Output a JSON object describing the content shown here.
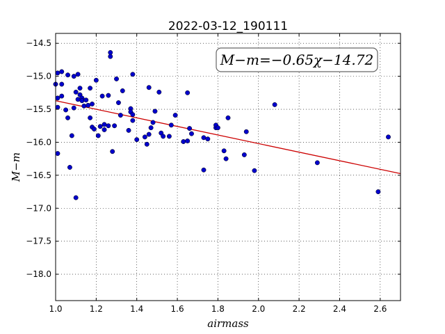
{
  "chart_data": {
    "type": "scatter",
    "title": "2022-03-12_190111",
    "xlabel": "airmass",
    "ylabel": "M−m",
    "xlim": [
      1.0,
      2.7
    ],
    "ylim": [
      -18.4,
      -14.35
    ],
    "y_inverted": true,
    "grid": true,
    "xticks": [
      "1.0",
      "1.2",
      "1.4",
      "1.6",
      "1.8",
      "2.0",
      "2.2",
      "2.4",
      "2.6"
    ],
    "xtick_values": [
      1.0,
      1.2,
      1.4,
      1.6,
      1.8,
      2.0,
      2.2,
      2.4,
      2.6
    ],
    "yticks": [
      "−14.5",
      "−15.0",
      "−15.5",
      "−16.0",
      "−16.5",
      "−17.0",
      "−17.5",
      "−18.0"
    ],
    "ytick_values": [
      -14.5,
      -15.0,
      -15.5,
      -16.0,
      -16.5,
      -17.0,
      -17.5,
      -18.0
    ],
    "annotation": "M−m=−0.65χ−14.72",
    "fit": {
      "slope": -0.65,
      "intercept": -14.72,
      "color": "#cc0000"
    },
    "marker_color": "#0000cc",
    "points": [
      [
        1.0,
        -15.12
      ],
      [
        1.01,
        -15.47
      ],
      [
        1.01,
        -15.33
      ],
      [
        1.01,
        -14.95
      ],
      [
        1.01,
        -16.17
      ],
      [
        1.03,
        -14.93
      ],
      [
        1.03,
        -15.12
      ],
      [
        1.03,
        -15.3
      ],
      [
        1.05,
        -15.51
      ],
      [
        1.06,
        -15.63
      ],
      [
        1.06,
        -14.98
      ],
      [
        1.07,
        -16.38
      ],
      [
        1.08,
        -15.9
      ],
      [
        1.09,
        -15.48
      ],
      [
        1.09,
        -15.0
      ],
      [
        1.1,
        -15.24
      ],
      [
        1.1,
        -16.84
      ],
      [
        1.11,
        -15.35
      ],
      [
        1.11,
        -14.97
      ],
      [
        1.12,
        -15.18
      ],
      [
        1.12,
        -15.28
      ],
      [
        1.13,
        -15.33
      ],
      [
        1.13,
        -15.37
      ],
      [
        1.14,
        -15.45
      ],
      [
        1.15,
        -15.36
      ],
      [
        1.16,
        -15.44
      ],
      [
        1.17,
        -15.63
      ],
      [
        1.17,
        -15.18
      ],
      [
        1.18,
        -15.42
      ],
      [
        1.18,
        -15.77
      ],
      [
        1.19,
        -15.8
      ],
      [
        1.2,
        -15.06
      ],
      [
        1.21,
        -15.9
      ],
      [
        1.22,
        -15.76
      ],
      [
        1.23,
        -15.3
      ],
      [
        1.24,
        -15.73
      ],
      [
        1.24,
        -15.81
      ],
      [
        1.26,
        -15.29
      ],
      [
        1.26,
        -15.75
      ],
      [
        1.27,
        -14.64
      ],
      [
        1.27,
        -14.7
      ],
      [
        1.28,
        -16.14
      ],
      [
        1.29,
        -15.75
      ],
      [
        1.3,
        -15.04
      ],
      [
        1.31,
        -15.4
      ],
      [
        1.32,
        -15.59
      ],
      [
        1.33,
        -15.22
      ],
      [
        1.36,
        -15.82
      ],
      [
        1.37,
        -15.49
      ],
      [
        1.37,
        -15.54
      ],
      [
        1.38,
        -14.97
      ],
      [
        1.38,
        -15.58
      ],
      [
        1.38,
        -15.67
      ],
      [
        1.4,
        -15.96
      ],
      [
        1.44,
        -15.92
      ],
      [
        1.45,
        -16.03
      ],
      [
        1.46,
        -15.88
      ],
      [
        1.46,
        -15.17
      ],
      [
        1.47,
        -15.78
      ],
      [
        1.48,
        -15.7
      ],
      [
        1.49,
        -15.53
      ],
      [
        1.51,
        -15.24
      ],
      [
        1.52,
        -15.86
      ],
      [
        1.53,
        -15.91
      ],
      [
        1.56,
        -15.91
      ],
      [
        1.57,
        -15.74
      ],
      [
        1.59,
        -15.59
      ],
      [
        1.63,
        -15.99
      ],
      [
        1.65,
        -15.98
      ],
      [
        1.65,
        -15.25
      ],
      [
        1.66,
        -15.79
      ],
      [
        1.67,
        -15.87
      ],
      [
        1.73,
        -15.93
      ],
      [
        1.73,
        -16.42
      ],
      [
        1.75,
        -15.95
      ],
      [
        1.79,
        -15.78
      ],
      [
        1.79,
        -15.74
      ],
      [
        1.8,
        -15.78
      ],
      [
        1.83,
        -16.13
      ],
      [
        1.84,
        -16.25
      ],
      [
        1.85,
        -15.63
      ],
      [
        1.93,
        -16.19
      ],
      [
        1.94,
        -15.84
      ],
      [
        1.98,
        -16.43
      ],
      [
        2.08,
        -15.43
      ],
      [
        2.29,
        -16.31
      ],
      [
        2.59,
        -16.75
      ],
      [
        2.64,
        -15.92
      ]
    ]
  }
}
